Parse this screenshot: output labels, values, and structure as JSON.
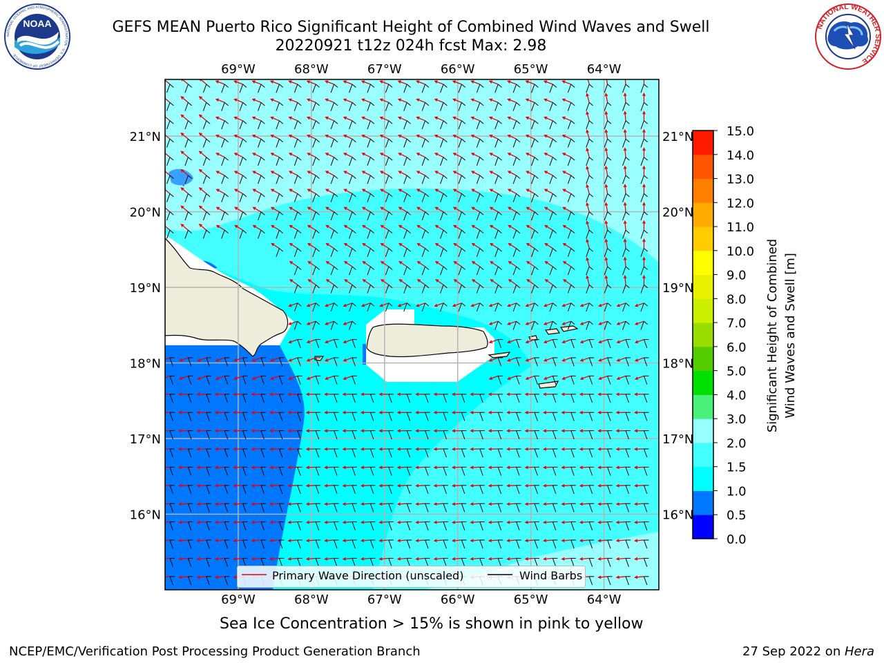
{
  "title": {
    "line1": "GEFS MEAN Puerto Rico Significant Height of Combined Wind Waves and Swell",
    "line2": "20220921 t12z 024h fcst   Max: 2.98"
  },
  "logos": {
    "noaa": {
      "text": "NOAA",
      "ring_text": "NATIONAL OCEANIC AND ATMOSPHERIC ADMINISTRATION · U.S. DEPARTMENT OF COMMERCE"
    },
    "nws": {
      "ring_text": "NATIONAL WEATHER SERVICE"
    }
  },
  "map": {
    "lon_labels": [
      "69°W",
      "68°W",
      "67°W",
      "66°W",
      "65°W",
      "64°W"
    ],
    "lat_labels": [
      "21°N",
      "20°N",
      "19°N",
      "18°N",
      "17°N",
      "16°N"
    ],
    "lon_values": [
      -69,
      -68,
      -67,
      -66,
      -65,
      -64
    ],
    "lat_values": [
      21,
      20,
      19,
      18,
      17,
      16
    ],
    "extent": {
      "lon_min": -70,
      "lon_max": -63.25,
      "lat_min": 15,
      "lat_max": 21.75
    },
    "colors": {
      "land": "#eeecdb",
      "coast": "#000000",
      "grid": "#b3b3b3",
      "arrow": "#e8000b",
      "barb": "#000000"
    }
  },
  "legend": {
    "primary_wave": "Primary Wave Direction (unscaled)",
    "wind_barbs": "Wind Barbs"
  },
  "colorbar": {
    "label_line1": "Significant Height of Combined",
    "label_line2": "Wind Waves and Swell [m]",
    "ticks": [
      "0.0",
      "0.5",
      "1.0",
      "1.5",
      "2.0",
      "3.0",
      "4.0",
      "5.0",
      "6.0",
      "7.0",
      "8.0",
      "9.0",
      "10.0",
      "11.0",
      "12.0",
      "13.0",
      "14.0",
      "15.0"
    ],
    "colors": [
      "#0000ff",
      "#0077ff",
      "#00ffff",
      "#44ffff",
      "#99ffff",
      "#4bf07a",
      "#00e000",
      "#55cc00",
      "#99dd00",
      "#ccee00",
      "#e8f000",
      "#ffff00",
      "#ffcc00",
      "#ffaa00",
      "#ff8000",
      "#ff5500",
      "#ff1a00"
    ]
  },
  "ice_note": "Sea Ice Concentration > 15% is shown in pink to yellow",
  "footer": {
    "left": "NCEP/EMC/Verification Post Processing Product Generation Branch",
    "date": "27 Sep 2022 on ",
    "machine": "Hera"
  }
}
